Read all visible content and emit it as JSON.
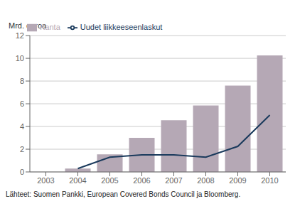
{
  "chart_data": {
    "type": "bar",
    "ylabel": "Mrd. euroa",
    "categories": [
      "2003",
      "2004",
      "2005",
      "2006",
      "2007",
      "2008",
      "2009",
      "2010"
    ],
    "series": [
      {
        "name": "Kanta",
        "type": "bar",
        "color": "#b5a8b5",
        "values": [
          0,
          0.3,
          1.55,
          3.0,
          4.55,
          5.85,
          7.6,
          10.25
        ]
      },
      {
        "name": "Uudet liikkeeseenlaskut",
        "type": "line",
        "color": "#1a3a5c",
        "values": [
          null,
          0.3,
          1.3,
          1.5,
          1.5,
          1.3,
          2.25,
          5.0
        ]
      }
    ],
    "ylim": [
      0,
      12
    ],
    "yticks": [
      0,
      2,
      4,
      6,
      8,
      10,
      12
    ],
    "grid": true,
    "legend": "top",
    "annotations": [
      "Lähteet: Suomen Pankki, European Covered Bonds Council ja Bloomberg."
    ]
  }
}
